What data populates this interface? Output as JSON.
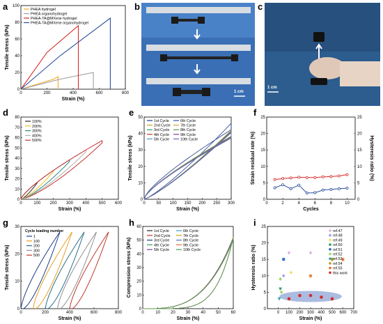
{
  "figure": {
    "panel_letters": [
      "a",
      "b",
      "c",
      "d",
      "e",
      "f",
      "g",
      "h",
      "i"
    ],
    "photo_scale_b": "1 cm",
    "photo_scale_c": "1 cm"
  },
  "chart_data": [
    {
      "panel": "a",
      "type": "line",
      "xlabel": "Strain (%)",
      "ylabel": "Tensile stress (kPa)",
      "xlim": [
        0,
        800
      ],
      "ylim": [
        0,
        100
      ],
      "xticks": [
        0,
        200,
        400,
        600,
        800
      ],
      "yticks": [
        0,
        20,
        40,
        60,
        80,
        100
      ],
      "legend_position": "top-left",
      "series": [
        {
          "name": "PHEA hydrogel",
          "color": "#f5a623",
          "x": [
            0,
            250,
            285,
            285
          ],
          "y": [
            0,
            12,
            15,
            0
          ]
        },
        {
          "name": "PHEA organohydrogel",
          "color": "#9e9e9e",
          "x": [
            0,
            300,
            555,
            555
          ],
          "y": [
            0,
            12,
            20,
            0
          ]
        },
        {
          "name": "PHEA-TA@MXene hydrogel",
          "color": "#d62a2a",
          "x": [
            0,
            200,
            440,
            440
          ],
          "y": [
            0,
            44,
            76,
            0
          ]
        },
        {
          "name": "PHEA-TA@MXene organohydrogel",
          "color": "#2c4e9c",
          "x": [
            0,
            300,
            685,
            685
          ],
          "y": [
            0,
            40,
            85,
            0
          ]
        }
      ]
    },
    {
      "panel": "d",
      "type": "line",
      "xlabel": "Strain (%)",
      "ylabel": "Tensile stress (kPa)",
      "xlim": [
        0,
        600
      ],
      "ylim": [
        0,
        80
      ],
      "xticks": [
        0,
        100,
        200,
        300,
        400,
        500,
        600
      ],
      "yticks": [
        0,
        10,
        20,
        30,
        40,
        50,
        60,
        70,
        80
      ],
      "legend_position": "top-left",
      "series": [
        {
          "name": "100%",
          "color": "#222222",
          "max_strain": 100
        },
        {
          "name": "200%",
          "color": "#f0c020",
          "max_strain": 200
        },
        {
          "name": "300%",
          "color": "#2a8a7a",
          "max_strain": 300
        },
        {
          "name": "400%",
          "color": "#b0b0b0",
          "max_strain": 400
        },
        {
          "name": "500%",
          "color": "#c83232",
          "max_strain": 500
        }
      ]
    },
    {
      "panel": "e",
      "type": "line",
      "xlabel": "Strain (%)",
      "ylabel": "Tensile stress (kPa)",
      "xlim": [
        0,
        300
      ],
      "ylim": [
        0,
        50
      ],
      "xticks": [
        0,
        50,
        100,
        150,
        200,
        250,
        300
      ],
      "yticks": [
        0,
        10,
        20,
        30,
        40,
        50
      ],
      "legend_position": "top-left",
      "series": [
        {
          "name": "1st Cycle",
          "color": "#1f3c88"
        },
        {
          "name": "2nd Cycle",
          "color": "#d4a017"
        },
        {
          "name": "3rd Cycle",
          "color": "#2e9c6a"
        },
        {
          "name": "4th Cycle",
          "color": "#c0392b"
        },
        {
          "name": "5th Cycle",
          "color": "#3aa0c8"
        },
        {
          "name": "6th Cycle",
          "color": "#2a4fa8"
        },
        {
          "name": "7th Cycle",
          "color": "#e0a030"
        },
        {
          "name": "8th Cycle",
          "color": "#4aa04a"
        },
        {
          "name": "9th Cycle",
          "color": "#7b3fa0"
        },
        {
          "name": "10th Cycle",
          "color": "#6070c0"
        }
      ]
    },
    {
      "panel": "f",
      "type": "line",
      "xlabel": "Cycles",
      "ylabel": "Strain residual rate (%)",
      "ylabel_right": "Hysteresis ratio (%)",
      "xlim": [
        0,
        11
      ],
      "ylim": [
        0,
        25
      ],
      "ylim_right": [
        0,
        25
      ],
      "xticks": [
        0,
        2,
        4,
        6,
        8,
        10
      ],
      "yticks": [
        0,
        5,
        10,
        15,
        20,
        25
      ],
      "yticks_right": [
        0,
        5,
        10,
        15,
        20,
        25
      ],
      "series": [
        {
          "name": "Strain residual rate",
          "color": "#d62a2a",
          "axis": "left",
          "x": [
            1,
            2,
            3,
            4,
            5,
            6,
            7,
            8,
            9,
            10
          ],
          "y": [
            6.0,
            6.3,
            6.5,
            6.7,
            6.6,
            6.6,
            6.8,
            6.9,
            7.1,
            7.5
          ]
        },
        {
          "name": "Hysteresis ratio",
          "color": "#2c4e9c",
          "axis": "right",
          "x": [
            1,
            2,
            3,
            4,
            5,
            6,
            7,
            8,
            9,
            10
          ],
          "y": [
            3.5,
            4.4,
            3.2,
            4.3,
            1.9,
            2.0,
            2.8,
            3.0,
            3.2,
            3.4
          ]
        }
      ]
    },
    {
      "panel": "g",
      "type": "line",
      "xlabel": "Strain (%)",
      "ylabel": "Tensile stress (kPa)",
      "xlim": [
        0,
        800
      ],
      "ylim": [
        0,
        30
      ],
      "xticks": [
        0,
        200,
        400,
        600,
        800
      ],
      "yticks": [
        0,
        10,
        20,
        30
      ],
      "legend_title": "Cycle loading number",
      "legend_position": "top-left",
      "series": [
        {
          "name": "1",
          "color": "#1f3c88",
          "offset": 0
        },
        {
          "name": "100",
          "color": "#e8a020",
          "offset": 100
        },
        {
          "name": "200",
          "color": "#2a6f8a",
          "offset": 200
        },
        {
          "name": "300",
          "color": "#909090",
          "offset": 300
        },
        {
          "name": "500",
          "color": "#c0392b",
          "offset": 400
        }
      ]
    },
    {
      "panel": "h",
      "type": "line",
      "xlabel": "Strain (%)",
      "ylabel": "Compression stress (kPa)",
      "xlim": [
        0,
        60
      ],
      "ylim": [
        0,
        60
      ],
      "xticks": [
        0,
        10,
        20,
        30,
        40,
        50,
        60
      ],
      "yticks": [
        0,
        10,
        20,
        30,
        40,
        50,
        60
      ],
      "legend_position": "top-left",
      "series": [
        {
          "name": "1st Cycle",
          "color": "#222222"
        },
        {
          "name": "2nd Cycle",
          "color": "#c0392b"
        },
        {
          "name": "3rd Cycle",
          "color": "#1f3c88"
        },
        {
          "name": "4th Cycle",
          "color": "#2e9c6a"
        },
        {
          "name": "5th Cycle",
          "color": "#7b3fa0"
        },
        {
          "name": "6th Cycle",
          "color": "#3aa0c8"
        },
        {
          "name": "7th Cycle",
          "color": "#d4a017"
        },
        {
          "name": "8th Cycle",
          "color": "#6070c0"
        },
        {
          "name": "9th Cycle",
          "color": "#e07040"
        },
        {
          "name": "10th Cycle",
          "color": "#4aa04a"
        }
      ]
    },
    {
      "panel": "i",
      "type": "scatter",
      "xlabel": "Strain (%)",
      "ylabel": "Hysteresis ratio (%)",
      "xlim": [
        -100,
        700
      ],
      "ylim": [
        0,
        25
      ],
      "xticks": [
        0,
        100,
        200,
        300,
        400,
        500,
        600,
        700
      ],
      "yticks": [
        0,
        5,
        10,
        15,
        20,
        25
      ],
      "legend_position": "right",
      "series": [
        {
          "name": "ref.47",
          "color": "#e0b0e0",
          "marker": "diamond",
          "x": [
            100,
            300
          ],
          "y": [
            17,
            17
          ]
        },
        {
          "name": "ref.48",
          "color": "#a0a0f0",
          "marker": "diamond",
          "x": [
            50
          ],
          "y": [
            10
          ]
        },
        {
          "name": "ref.49",
          "color": "#f0e060",
          "marker": "diamond",
          "x": [
            120
          ],
          "y": [
            11
          ]
        },
        {
          "name": "ref.50",
          "color": "#2ca060",
          "marker": "triangle-down",
          "x": [
            20
          ],
          "y": [
            6
          ]
        },
        {
          "name": "ref.51",
          "color": "#2c6fc0",
          "marker": "square",
          "x": [
            50
          ],
          "y": [
            15
          ]
        },
        {
          "name": "ref.52",
          "color": "#a0d060",
          "marker": "diamond",
          "x": [
            20,
            30
          ],
          "y": [
            9,
            5
          ]
        },
        {
          "name": "ref.53",
          "color": "#3aa0b0",
          "marker": "triangle-down",
          "x": [
            10
          ],
          "y": [
            3
          ]
        },
        {
          "name": "ref.54",
          "color": "#b0a020",
          "marker": "circle",
          "x": [
            500
          ],
          "y": [
            15
          ]
        },
        {
          "name": "ref.55",
          "color": "#e07020",
          "marker": "star",
          "x": [
            300,
            600
          ],
          "y": [
            10,
            15
          ]
        },
        {
          "name": "this work",
          "color": "#d62a2a",
          "marker": "circle",
          "x": [
            100,
            200,
            300,
            400,
            500
          ],
          "y": [
            3,
            4,
            4,
            3.5,
            3
          ]
        }
      ]
    }
  ]
}
